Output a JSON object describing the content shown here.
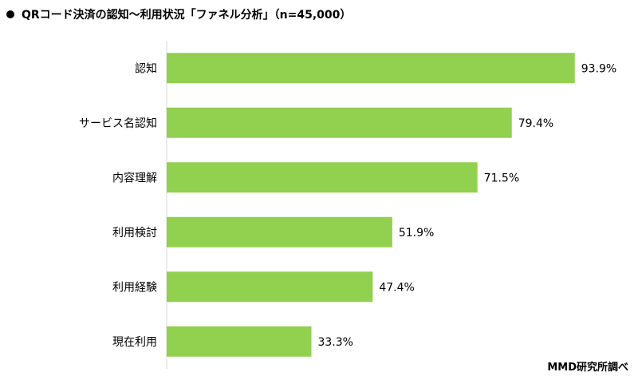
{
  "header": {
    "title": "QRコード決済の認知～利用状況「ファネル分析」（n=45,000）"
  },
  "source": "MMD研究所調べ",
  "colors": {
    "bar": "#92d050",
    "axis": "#d9d9d9",
    "text": "#000000"
  },
  "chart_data": {
    "type": "bar",
    "orientation": "horizontal",
    "categories": [
      "認知",
      "サービス名認知",
      "内容理解",
      "利用検討",
      "利用経験",
      "現在利用"
    ],
    "values": [
      93.9,
      79.4,
      71.5,
      51.9,
      47.4,
      33.3
    ],
    "value_labels": [
      "93.9%",
      "79.4%",
      "71.5%",
      "51.9%",
      "47.4%",
      "33.3%"
    ],
    "unit": "%",
    "xlim": [
      0,
      100
    ],
    "grid": false,
    "legend": "none"
  }
}
